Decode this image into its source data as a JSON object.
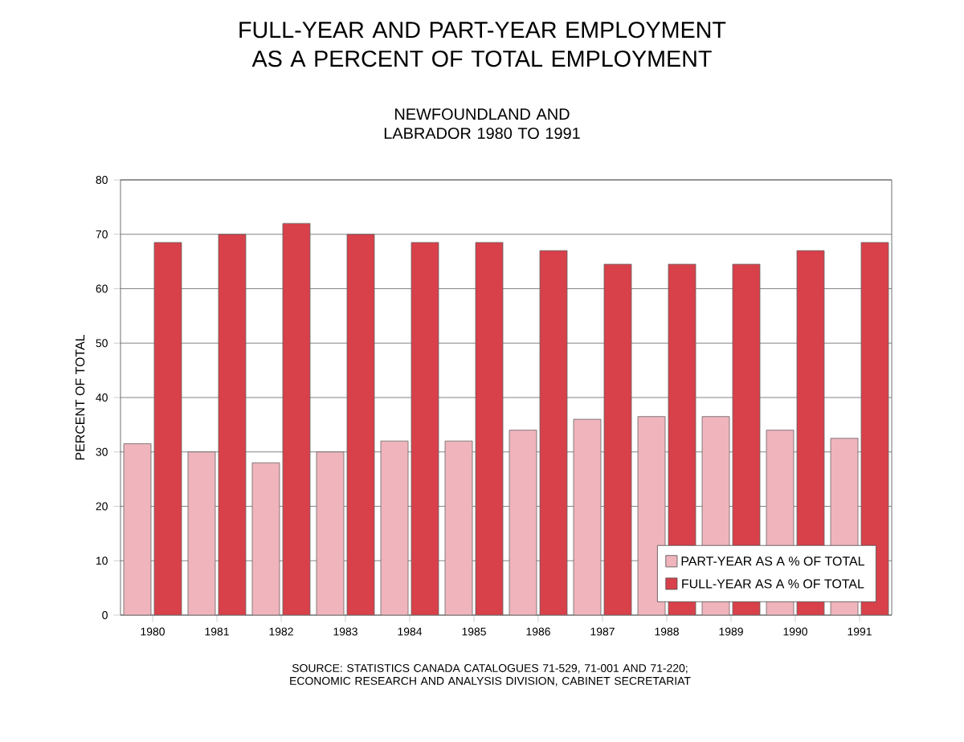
{
  "chart_data": {
    "type": "bar",
    "title": "FULL-YEAR AND PART-YEAR EMPLOYMENT AS A PERCENT OF TOTAL EMPLOYMENT",
    "subtitle": "NEWFOUNDLAND AND LABRADOR 1980 TO 1991",
    "ylabel": "PERCENT OF TOTAL",
    "categories": [
      "1980",
      "1981",
      "1982",
      "1983",
      "1984",
      "1985",
      "1986",
      "1987",
      "1988",
      "1989",
      "1990",
      "1991"
    ],
    "series": [
      {
        "name": "PART-YEAR AS A % OF TOTAL",
        "color": "#f0b4bc",
        "values": [
          31.5,
          30,
          28,
          30,
          32,
          32,
          34,
          36,
          36.5,
          36.5,
          34,
          32.5
        ]
      },
      {
        "name": "FULL-YEAR AS A % OF TOTAL",
        "color": "#d8404a",
        "values": [
          68.5,
          70,
          72,
          70,
          68.5,
          68.5,
          67,
          64.5,
          64.5,
          64.5,
          67,
          68.5
        ]
      }
    ],
    "ylim": [
      0,
      80
    ],
    "yticks": [
      0,
      10,
      20,
      30,
      40,
      50,
      60,
      70,
      80
    ],
    "grid": "y",
    "legend": "bottom right",
    "annotations": [
      "SOURCE: STATISTICS CANADA CATALOGUES 71-529, 71-001 AND 71-220; ECONOMIC RESEARCH AND ANALYSIS DIVISION, CABINET SECRETARIAT"
    ]
  }
}
